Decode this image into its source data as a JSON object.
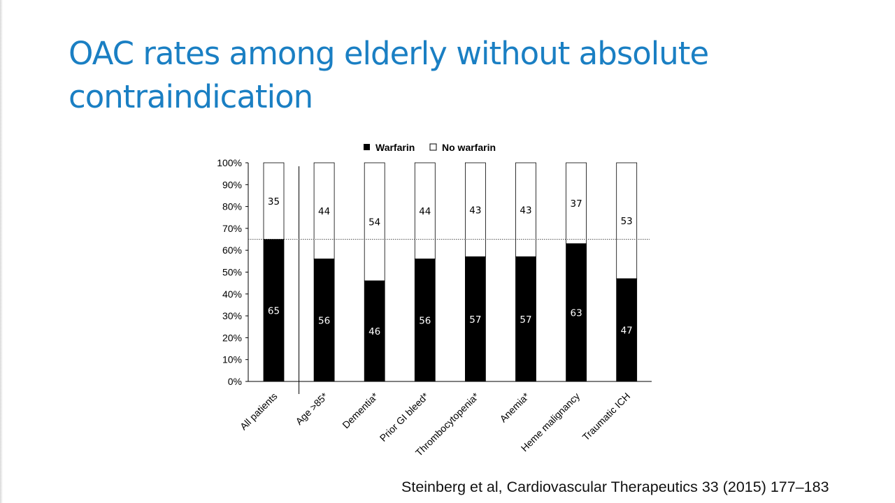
{
  "slide": {
    "title_lines": [
      "OAC rates among elderly without absolute",
      "contraindication"
    ],
    "citation": "Steinberg et al, Cardiovascular Therapeutics 33 (2015) 177–183"
  },
  "colors": {
    "title": "#1a7fc3",
    "warfarin": "#000000",
    "no_warfarin": "#ffffff",
    "reference_line": "#555555"
  },
  "chart_data": {
    "type": "bar",
    "stacked": true,
    "title": "",
    "xlabel": "",
    "ylabel": "",
    "ylim": [
      0,
      100
    ],
    "y_ticks": [
      "0%",
      "10%",
      "20%",
      "30%",
      "40%",
      "50%",
      "60%",
      "70%",
      "80%",
      "90%",
      "100%"
    ],
    "categories": [
      "All patients",
      "Age >85*",
      "Dementia*",
      "Prior GI bleed*",
      "Thrombocytopenia*",
      "Anemia*",
      "Heme malignancy",
      "Traumatic ICH"
    ],
    "series": [
      {
        "name": "Warfarin",
        "values": [
          65,
          56,
          46,
          56,
          57,
          57,
          63,
          47
        ]
      },
      {
        "name": "No warfarin",
        "values": [
          35,
          44,
          54,
          44,
          43,
          43,
          37,
          53
        ]
      }
    ],
    "reference_line": 65,
    "legend": {
      "position": "top",
      "items": [
        "Warfarin",
        "No warfarin"
      ]
    },
    "grid": false
  }
}
